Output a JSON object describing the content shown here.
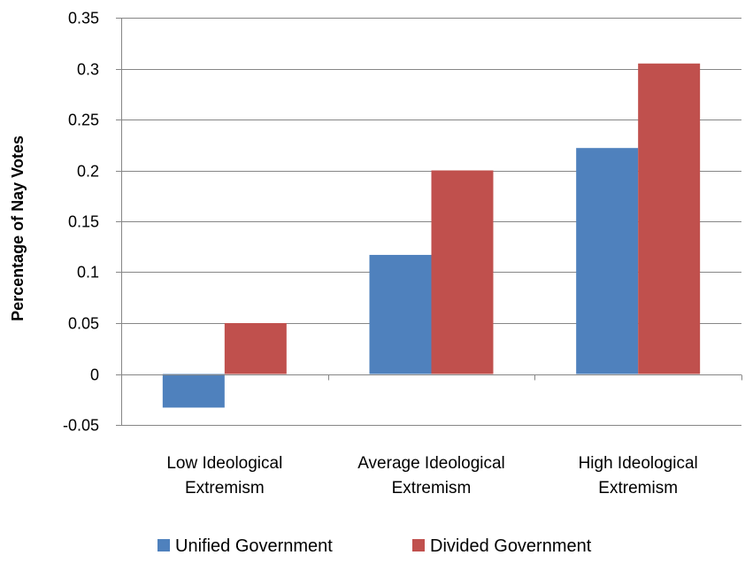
{
  "chart_data": {
    "type": "bar",
    "title": "",
    "xlabel": "",
    "ylabel": "Percentage of Nay Votes",
    "ylim": [
      -0.05,
      0.35
    ],
    "ytick_values": [
      -0.05,
      0,
      0.05,
      0.1,
      0.15,
      0.2,
      0.25,
      0.3,
      0.35
    ],
    "ytick_labels": [
      "-0.05",
      "0",
      "0.05",
      "0.1",
      "0.15",
      "0.2",
      "0.25",
      "0.3",
      "0.35"
    ],
    "categories": [
      [
        "Low Ideological",
        "Extremism"
      ],
      [
        "Average Ideological",
        "Extremism"
      ],
      [
        "High Ideological",
        "Extremism"
      ]
    ],
    "series": [
      {
        "name": "Unified Government",
        "color": "#4f81bd",
        "values": [
          -0.033,
          0.117,
          0.222
        ]
      },
      {
        "name": "Divided Government",
        "color": "#c0504d",
        "values": [
          0.05,
          0.2,
          0.305
        ]
      }
    ],
    "grid": {
      "horizontal": true,
      "vertical": false,
      "color": "#868686"
    },
    "legend": "bottom"
  }
}
